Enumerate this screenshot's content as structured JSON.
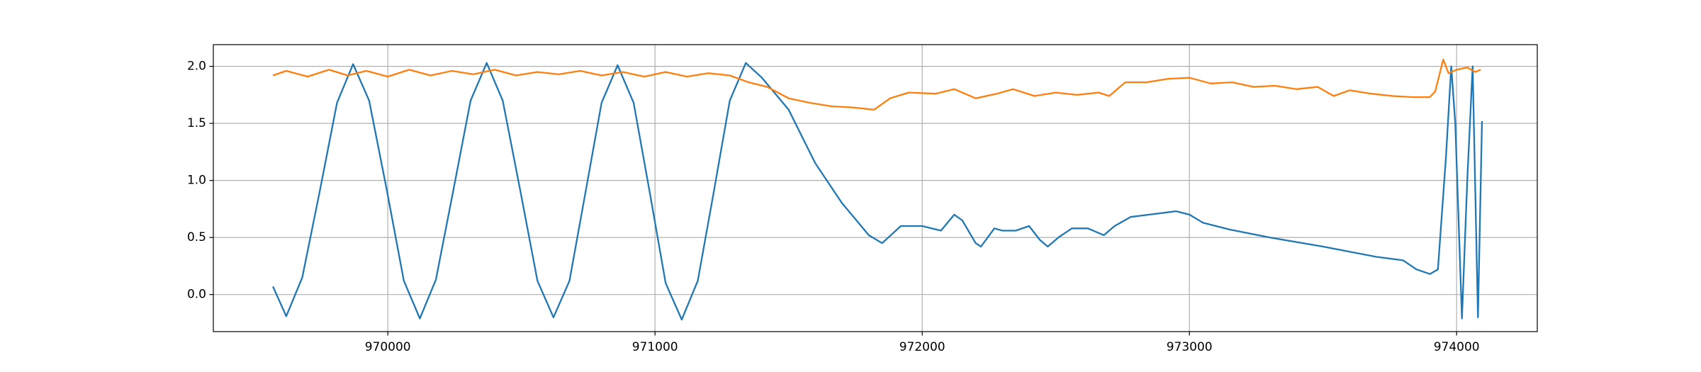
{
  "chart_data": {
    "type": "line",
    "xlim": [
      969347,
      974302
    ],
    "ylim": [
      -0.325,
      2.19
    ],
    "xticks": [
      970000,
      971000,
      972000,
      973000,
      974000
    ],
    "yticks": [
      {
        "value": 0,
        "label": "0.0"
      },
      {
        "value": 0.5,
        "label": "0.5"
      },
      {
        "value": 1,
        "label": "1.0"
      },
      {
        "value": 1.5,
        "label": "1.5"
      },
      {
        "value": 2,
        "label": "2.0"
      }
    ],
    "grid": true,
    "series": [
      {
        "color": "#1f77b4",
        "x": [
          969570,
          969620,
          969680,
          969745,
          969810,
          969870,
          969930,
          969995,
          970060,
          970120,
          970180,
          970245,
          970310,
          970370,
          970430,
          970495,
          970560,
          970620,
          970680,
          970740,
          970800,
          970860,
          970920,
          970980,
          971040,
          971100,
          971160,
          971220,
          971280,
          971340,
          971400,
          971500,
          971600,
          971700,
          971800,
          971850,
          971920,
          972000,
          972070,
          972120,
          972150,
          972200,
          972220,
          972270,
          972300,
          972350,
          972400,
          972440,
          972470,
          972510,
          972560,
          972620,
          972680,
          972720,
          972780,
          972850,
          972950,
          973000,
          973050,
          973150,
          973300,
          973500,
          973700,
          973800,
          973850,
          973900,
          973930,
          973960,
          973980,
          973995,
          974020,
          974040,
          974060,
          974080,
          974095
        ],
        "values": [
          0.07,
          -0.19,
          0.15,
          0.9,
          1.68,
          2.02,
          1.7,
          0.93,
          0.12,
          -0.21,
          0.13,
          0.91,
          1.7,
          2.03,
          1.7,
          0.92,
          0.12,
          -0.2,
          0.12,
          0.9,
          1.68,
          2.01,
          1.68,
          0.9,
          0.1,
          -0.22,
          0.12,
          0.9,
          1.7,
          2.03,
          1.9,
          1.62,
          1.15,
          0.8,
          0.52,
          0.45,
          0.6,
          0.6,
          0.56,
          0.7,
          0.65,
          0.45,
          0.42,
          0.58,
          0.56,
          0.56,
          0.6,
          0.48,
          0.42,
          0.5,
          0.58,
          0.58,
          0.52,
          0.6,
          0.68,
          0.7,
          0.73,
          0.7,
          0.63,
          0.57,
          0.5,
          0.42,
          0.33,
          0.3,
          0.22,
          0.18,
          0.22,
          1.2,
          2.0,
          1.5,
          -0.21,
          1.0,
          2.0,
          -0.2,
          1.52
        ]
      },
      {
        "color": "#ff7f0e",
        "x": [
          969570,
          969620,
          969700,
          969780,
          969850,
          969920,
          970000,
          970080,
          970160,
          970240,
          970320,
          970400,
          970480,
          970560,
          970640,
          970720,
          970800,
          970880,
          970960,
          971040,
          971120,
          971200,
          971280,
          971350,
          971420,
          971500,
          971580,
          971660,
          971740,
          971820,
          971880,
          971950,
          972050,
          972120,
          972200,
          972280,
          972340,
          972420,
          972500,
          972580,
          972660,
          972700,
          972760,
          972840,
          972920,
          973000,
          973080,
          973160,
          973240,
          973320,
          973400,
          973480,
          973540,
          973600,
          973680,
          973760,
          973840,
          973900,
          973920,
          973950,
          973970,
          974000,
          974040,
          974070,
          974090
        ],
        "values": [
          1.92,
          1.96,
          1.91,
          1.97,
          1.92,
          1.96,
          1.91,
          1.97,
          1.92,
          1.96,
          1.93,
          1.97,
          1.92,
          1.95,
          1.93,
          1.96,
          1.92,
          1.95,
          1.91,
          1.95,
          1.91,
          1.94,
          1.92,
          1.86,
          1.82,
          1.72,
          1.68,
          1.65,
          1.64,
          1.62,
          1.72,
          1.77,
          1.76,
          1.8,
          1.72,
          1.76,
          1.8,
          1.74,
          1.77,
          1.75,
          1.77,
          1.74,
          1.86,
          1.86,
          1.89,
          1.9,
          1.85,
          1.86,
          1.82,
          1.83,
          1.8,
          1.82,
          1.74,
          1.79,
          1.76,
          1.74,
          1.73,
          1.73,
          1.78,
          2.06,
          1.94,
          1.97,
          1.99,
          1.95,
          1.97
        ]
      }
    ]
  }
}
